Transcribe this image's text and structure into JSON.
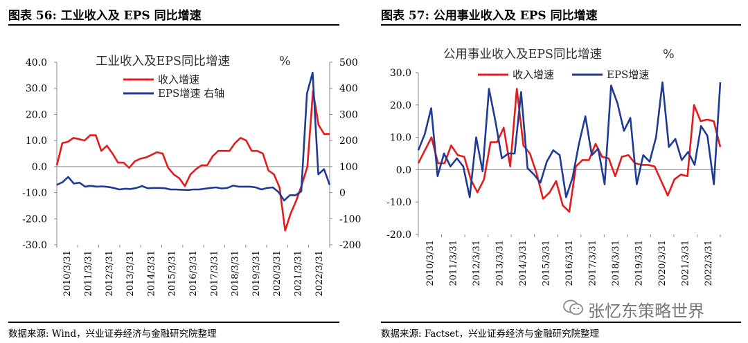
{
  "left_figure": {
    "title": "图表 56:  工业收入及 EPS 同比增速",
    "source": "数据来源:  Wind，兴业证券经济与金融研究院整理"
  },
  "right_figure": {
    "title": "图表 57:  公用事业收入及 EPS 同比增速",
    "source": "数据来源:  Factset，兴业证券经济与金融研究院整理"
  },
  "watermark": {
    "text": "张忆东策略世界",
    "icon": "wechat-logo-icon"
  },
  "chart_data": [
    {
      "type": "line",
      "title": "工业收入及EPS同比增速",
      "unit": "%",
      "x_labels": [
        "2010/3/31",
        "2011/3/31",
        "2012/3/31",
        "2013/3/31",
        "2014/3/31",
        "2015/3/31",
        "2016/3/31",
        "2017/3/31",
        "2018/3/31",
        "2019/3/31",
        "2020/3/31",
        "2021/3/31",
        "2022/3/31"
      ],
      "ylim_left": [
        -30,
        40
      ],
      "yticks_left": [
        "40.0",
        "30.0",
        "20.0",
        "10.0",
        "0.0",
        "-10.0",
        "-20.0",
        "-30.0"
      ],
      "ylim_right": [
        -200,
        500
      ],
      "yticks_right": [
        "500",
        "400",
        "300",
        "200",
        "100",
        "0",
        "-100",
        "-200"
      ],
      "series": [
        {
          "name": "收入增速",
          "axis": "left",
          "color": "#e41a1c",
          "values": [
            0.5,
            9,
            9.5,
            11,
            10.5,
            10,
            12,
            12,
            6,
            8,
            5,
            1.5,
            1.5,
            -0.5,
            2,
            3,
            3.5,
            4.5,
            5.5,
            5,
            -0.5,
            -3,
            -4.5,
            -7.5,
            -3,
            -1,
            0.5,
            0.5,
            4,
            6,
            6,
            6,
            9,
            11,
            10,
            6,
            6,
            5,
            -1.5,
            -3,
            -8,
            -24.5,
            -18,
            -13,
            -7,
            0,
            29,
            16,
            12.5,
            12.5
          ]
        },
        {
          "name": "EPS增速  右轴",
          "axis": "right",
          "color": "#1f3a93",
          "values": [
            30,
            40,
            60,
            35,
            38,
            23,
            26,
            23,
            24,
            22,
            18,
            12,
            15,
            14,
            18,
            25,
            17,
            18,
            18,
            17,
            12,
            12,
            11,
            10,
            12,
            12,
            15,
            18,
            20,
            16,
            18,
            27,
            23,
            23,
            23,
            20,
            12,
            18,
            20,
            2,
            -30,
            -10,
            -10,
            5,
            380,
            460,
            70,
            90,
            30
          ]
        }
      ]
    },
    {
      "type": "line",
      "title": "公用事业收入及EPS同比增速",
      "unit": "%",
      "x_labels": [
        "2010/3/31",
        "2011/3/31",
        "2012/3/31",
        "2013/3/31",
        "2014/3/31",
        "2015/3/31",
        "2016/3/31",
        "2017/3/31",
        "2018/3/31",
        "2019/3/31",
        "2020/3/31",
        "2021/3/31",
        "2022/3/31"
      ],
      "ylim": [
        -20,
        30
      ],
      "yticks": [
        "30.0",
        "20.0",
        "10.0",
        "0.0",
        "-10.0",
        "-20.0"
      ],
      "series": [
        {
          "name": "收入增速",
          "color": "#e41a1c",
          "values": [
            2,
            6,
            10,
            2,
            2,
            7.5,
            4.5,
            4,
            -3,
            -7,
            -3,
            8.5,
            8.5,
            13,
            1,
            25,
            7.5,
            5,
            -1,
            -9,
            -7,
            -3.5,
            -11,
            -13,
            1,
            3,
            3,
            8,
            4,
            3.5,
            -2,
            4,
            4.5,
            2,
            1.5,
            1.5,
            1,
            -3.5,
            -8,
            -3,
            -1.5,
            -2,
            20,
            15,
            15.5,
            15,
            7
          ]
        },
        {
          "name": "EPS增速",
          "color": "#1f3a93",
          "values": [
            6,
            11,
            19,
            -2,
            5,
            1,
            3.5,
            1,
            -8.5,
            10,
            -0.5,
            25,
            15,
            3.5,
            5,
            5,
            24,
            0.5,
            -1.5,
            -4,
            2.5,
            6,
            4.5,
            -8.5,
            -2.5,
            8,
            16.5,
            4.5,
            6.5,
            -4.5,
            26,
            20.5,
            12,
            16,
            -4.5,
            4.5,
            2.5,
            10,
            27,
            7,
            9.5,
            3,
            5.5,
            1.5,
            13.5,
            10.5,
            -4.5,
            27
          ]
        }
      ]
    }
  ]
}
